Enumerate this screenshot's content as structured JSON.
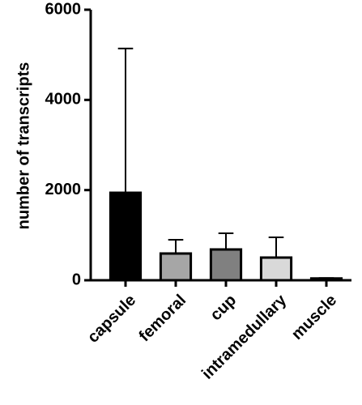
{
  "chart_data": {
    "type": "bar",
    "y_label": "number of transcripts",
    "categories": [
      "capsule",
      "femoral",
      "cup",
      "intramedullary",
      "muscle"
    ],
    "values": [
      1940,
      593,
      683,
      503,
      40
    ],
    "errors": [
      3200,
      305,
      360,
      450,
      10
    ],
    "colors": [
      "#000000",
      "#a6a6a6",
      "#808080",
      "#d9d9d9",
      "#000000"
    ],
    "ylim": [
      0,
      6000
    ],
    "yticks": [
      0,
      2000,
      4000,
      6000
    ]
  }
}
